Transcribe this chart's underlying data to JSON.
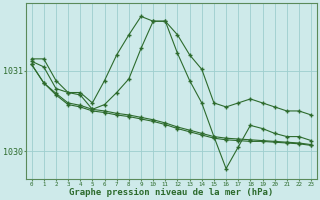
{
  "bg_color": "#ceeaea",
  "grid_color": "#9ecece",
  "line_color": "#2d6b2d",
  "marker_color": "#2d6b2d",
  "xlabel": "Graphe pression niveau de la mer (hPa)",
  "xlabel_fontsize": 6.5,
  "ylim": [
    1029.65,
    1031.85
  ],
  "xlim": [
    -0.5,
    23.5
  ],
  "yticks": [
    1030,
    1031
  ],
  "xticks": [
    0,
    1,
    2,
    3,
    4,
    5,
    6,
    7,
    8,
    9,
    10,
    11,
    12,
    13,
    14,
    15,
    16,
    17,
    18,
    19,
    20,
    21,
    22,
    23
  ],
  "series1_y": [
    1031.15,
    1031.15,
    1030.88,
    1030.73,
    1030.73,
    1030.6,
    1030.88,
    1031.2,
    1031.45,
    1031.68,
    1031.62,
    1031.62,
    1031.45,
    1031.2,
    1031.02,
    1030.6,
    1030.55,
    1030.6,
    1030.65,
    1030.6,
    1030.55,
    1030.5,
    1030.5,
    1030.45
  ],
  "series2_y": [
    1031.12,
    1031.05,
    1030.78,
    1030.73,
    1030.7,
    1030.52,
    1030.58,
    1030.73,
    1030.9,
    1031.28,
    1031.62,
    1031.62,
    1031.22,
    1030.88,
    1030.6,
    1030.18,
    1029.78,
    1030.05,
    1030.32,
    1030.28,
    1030.22,
    1030.18,
    1030.18,
    1030.13
  ],
  "series3_y": [
    1031.08,
    1030.85,
    1030.7,
    1030.58,
    1030.55,
    1030.5,
    1030.48,
    1030.45,
    1030.43,
    1030.4,
    1030.37,
    1030.33,
    1030.28,
    1030.24,
    1030.2,
    1030.16,
    1030.14,
    1030.13,
    1030.12,
    1030.12,
    1030.11,
    1030.1,
    1030.09,
    1030.07
  ],
  "series4_y": [
    1031.08,
    1030.85,
    1030.72,
    1030.6,
    1030.57,
    1030.52,
    1030.5,
    1030.47,
    1030.45,
    1030.42,
    1030.39,
    1030.35,
    1030.3,
    1030.26,
    1030.22,
    1030.18,
    1030.16,
    1030.15,
    1030.14,
    1030.13,
    1030.12,
    1030.11,
    1030.1,
    1030.08
  ]
}
